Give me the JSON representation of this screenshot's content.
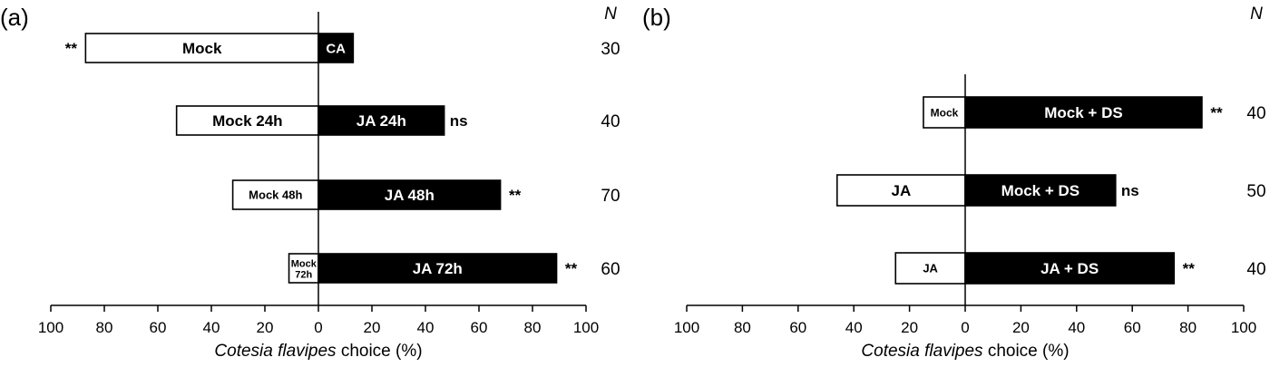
{
  "chart_data": [
    {
      "type": "bar",
      "orientation": "horizontal-diverging",
      "panel_label": "(a)",
      "n_header": "N",
      "xlabel_italic": "Cotesia flavipes",
      "xlabel_rest": " choice (%)",
      "ticks": [
        "100",
        "80",
        "60",
        "40",
        "20",
        "0",
        "20",
        "40",
        "60",
        "80",
        "100"
      ],
      "xlim": [
        -100,
        100
      ],
      "rows": [
        {
          "left_label": "Mock",
          "left_label_lines": [
            "Mock"
          ],
          "left_value": 87,
          "right_label": "CA",
          "right_value": 13,
          "sig": "**",
          "sig_side": "left",
          "n": "30"
        },
        {
          "left_label": "Mock 24h",
          "left_label_lines": [
            "Mock 24h"
          ],
          "left_value": 53,
          "right_label": "JA 24h",
          "right_value": 47,
          "sig": "ns",
          "sig_side": "right",
          "n": "40"
        },
        {
          "left_label": "Mock 48h",
          "left_label_lines": [
            "Mock 48h"
          ],
          "left_value": 32,
          "right_label": "JA 48h",
          "right_value": 68,
          "sig": "**",
          "sig_side": "right",
          "n": "70"
        },
        {
          "left_label": "Mock 72h",
          "left_label_lines": [
            "Mock",
            "72h"
          ],
          "left_value": 11,
          "right_label": "JA 72h",
          "right_value": 89,
          "sig": "**",
          "sig_side": "right",
          "n": "60"
        }
      ]
    },
    {
      "type": "bar",
      "orientation": "horizontal-diverging",
      "panel_label": "(b)",
      "n_header": "N",
      "xlabel_italic": "Cotesia flavipes",
      "xlabel_rest": " choice (%)",
      "ticks": [
        "100",
        "80",
        "60",
        "40",
        "20",
        "0",
        "20",
        "40",
        "60",
        "80",
        "100"
      ],
      "xlim": [
        -100,
        100
      ],
      "rows": [
        {
          "left_label": "Mock",
          "left_label_lines": [
            "Mock"
          ],
          "left_value": 15,
          "right_label": "Mock + DS",
          "right_value": 85,
          "sig": "**",
          "sig_side": "right",
          "n": "40"
        },
        {
          "left_label": "JA",
          "left_label_lines": [
            "JA"
          ],
          "left_value": 46,
          "right_label": "Mock + DS",
          "right_value": 54,
          "sig": "ns",
          "sig_side": "right",
          "n": "50"
        },
        {
          "left_label": "JA",
          "left_label_lines": [
            "JA"
          ],
          "left_value": 25,
          "right_label": "JA + DS",
          "right_value": 75,
          "sig": "**",
          "sig_side": "right",
          "n": "40"
        }
      ]
    }
  ]
}
